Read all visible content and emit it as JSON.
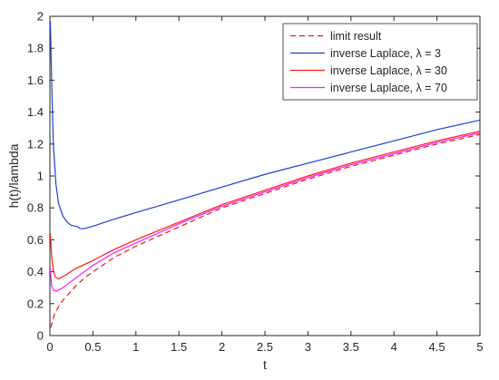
{
  "chart_data": {
    "type": "line",
    "title": "",
    "xlabel": "t",
    "ylabel": "h(t)/lambda",
    "xlim": [
      0,
      5
    ],
    "ylim": [
      0,
      2
    ],
    "xticks": [
      0,
      0.5,
      1,
      1.5,
      2,
      2.5,
      3,
      3.5,
      4,
      4.5,
      5
    ],
    "xtick_labels": [
      "0",
      "0.5",
      "1",
      "1.5",
      "2",
      "2.5",
      "3",
      "3.5",
      "4",
      "4.5",
      "5"
    ],
    "yticks": [
      0,
      0.2,
      0.4,
      0.6,
      0.8,
      1,
      1.2,
      1.4,
      1.6,
      1.8,
      2
    ],
    "ytick_labels": [
      "0",
      "0.2",
      "0.4",
      "0.6",
      "0.8",
      "1",
      "1.2",
      "1.4",
      "1.6",
      "1.8",
      "2"
    ],
    "grid": false,
    "legend_position": "top-right",
    "series": [
      {
        "name": "limit result",
        "color": "#e31a1c",
        "style": "dashed",
        "x": [
          0.01,
          0.05,
          0.1,
          0.15,
          0.2,
          0.3,
          0.4,
          0.5,
          0.75,
          1,
          1.5,
          2,
          2.5,
          3,
          3.5,
          4,
          4.5,
          5
        ],
        "y": [
          0.05,
          0.13,
          0.18,
          0.22,
          0.25,
          0.31,
          0.36,
          0.4,
          0.49,
          0.56,
          0.68,
          0.8,
          0.89,
          0.98,
          1.06,
          1.13,
          1.2,
          1.26
        ]
      },
      {
        "name": "inverse Laplace, λ = 3",
        "color": "#1f3fd6",
        "style": "solid",
        "x": [
          0.005,
          0.02,
          0.04,
          0.07,
          0.1,
          0.15,
          0.2,
          0.25,
          0.3,
          0.33,
          0.35,
          0.4,
          0.5,
          0.75,
          1,
          1.5,
          2,
          2.5,
          3,
          3.5,
          4,
          4.5,
          5
        ],
        "y": [
          1.97,
          1.6,
          1.2,
          0.95,
          0.83,
          0.75,
          0.71,
          0.69,
          0.685,
          0.68,
          0.67,
          0.67,
          0.685,
          0.73,
          0.77,
          0.85,
          0.93,
          1.01,
          1.08,
          1.15,
          1.22,
          1.29,
          1.35
        ]
      },
      {
        "name": "inverse Laplace, λ = 30",
        "color": "#ff1a1a",
        "style": "solid",
        "x": [
          0.005,
          0.02,
          0.04,
          0.06,
          0.08,
          0.1,
          0.12,
          0.15,
          0.2,
          0.3,
          0.5,
          0.75,
          1,
          1.5,
          2,
          2.5,
          3,
          3.5,
          4,
          4.5,
          5
        ],
        "y": [
          0.64,
          0.5,
          0.41,
          0.37,
          0.36,
          0.355,
          0.36,
          0.37,
          0.385,
          0.42,
          0.47,
          0.54,
          0.6,
          0.71,
          0.82,
          0.91,
          1.0,
          1.08,
          1.15,
          1.22,
          1.28
        ]
      },
      {
        "name": "inverse Laplace, λ = 70",
        "color": "#ff1aff",
        "style": "solid",
        "x": [
          0.005,
          0.02,
          0.04,
          0.06,
          0.08,
          0.1,
          0.12,
          0.15,
          0.2,
          0.3,
          0.5,
          0.75,
          1,
          1.5,
          2,
          2.5,
          3,
          3.5,
          4,
          4.5,
          5
        ],
        "y": [
          0.42,
          0.31,
          0.285,
          0.28,
          0.28,
          0.285,
          0.29,
          0.3,
          0.32,
          0.36,
          0.44,
          0.52,
          0.58,
          0.7,
          0.81,
          0.9,
          0.99,
          1.07,
          1.14,
          1.21,
          1.27
        ]
      }
    ]
  }
}
